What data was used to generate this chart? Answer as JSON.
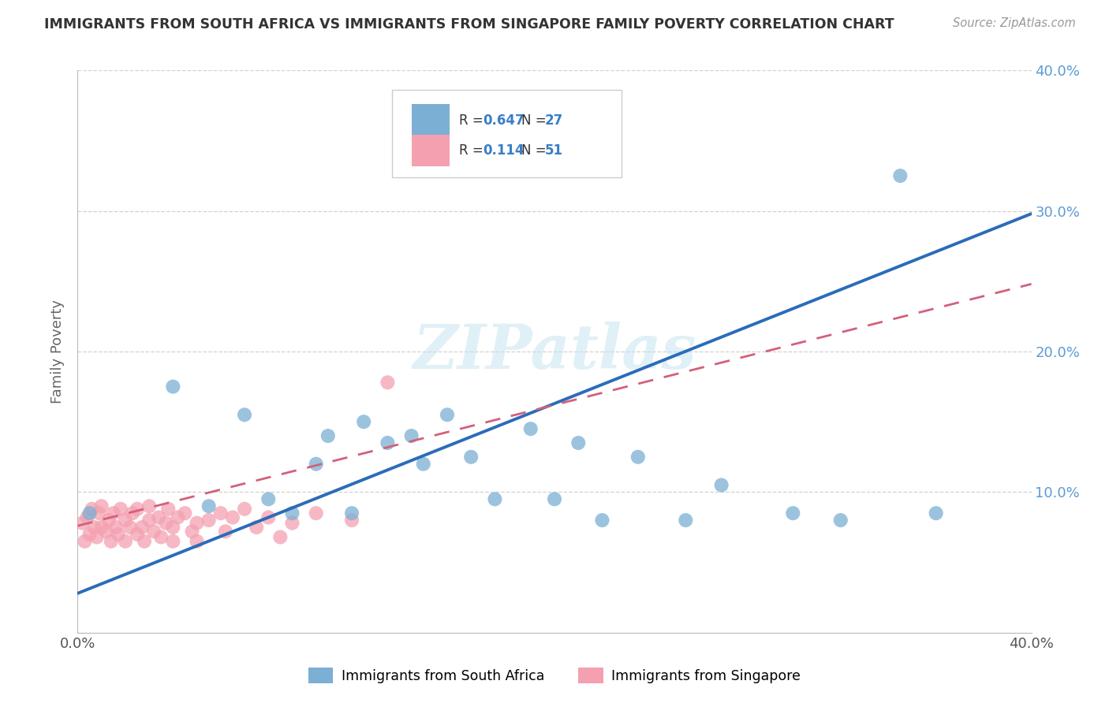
{
  "title": "IMMIGRANTS FROM SOUTH AFRICA VS IMMIGRANTS FROM SINGAPORE FAMILY POVERTY CORRELATION CHART",
  "source": "Source: ZipAtlas.com",
  "ylabel": "Family Poverty",
  "xlim": [
    0.0,
    0.4
  ],
  "ylim": [
    0.0,
    0.4
  ],
  "ytick_values": [
    0.0,
    0.1,
    0.2,
    0.3,
    0.4
  ],
  "ytick_labels": [
    "",
    "10.0%",
    "20.0%",
    "30.0%",
    "40.0%"
  ],
  "xtick_values": [
    0.0,
    0.1,
    0.2,
    0.3,
    0.4
  ],
  "xtick_labels": [
    "0.0%",
    "",
    "",
    "",
    "40.0%"
  ],
  "color_south_africa": "#7BAFD4",
  "color_singapore": "#F4A0B0",
  "legend_R_south_africa": "0.647",
  "legend_N_south_africa": "27",
  "legend_R_singapore": "0.114",
  "legend_N_singapore": "51",
  "line_color_south_africa": "#2B6CB8",
  "line_color_singapore": "#D4607A",
  "watermark": "ZIPatlas",
  "sa_line_x0": 0.0,
  "sa_line_y0": 0.028,
  "sa_line_x1": 0.4,
  "sa_line_y1": 0.298,
  "sg_line_x0": 0.0,
  "sg_line_y0": 0.076,
  "sg_line_x1": 0.4,
  "sg_line_y1": 0.248,
  "south_africa_x": [
    0.005,
    0.04,
    0.055,
    0.07,
    0.08,
    0.09,
    0.1,
    0.105,
    0.115,
    0.12,
    0.13,
    0.14,
    0.145,
    0.155,
    0.165,
    0.175,
    0.19,
    0.2,
    0.21,
    0.22,
    0.235,
    0.255,
    0.27,
    0.3,
    0.32,
    0.345,
    0.36
  ],
  "south_africa_y": [
    0.085,
    0.175,
    0.09,
    0.155,
    0.095,
    0.085,
    0.12,
    0.14,
    0.085,
    0.15,
    0.135,
    0.14,
    0.12,
    0.155,
    0.125,
    0.095,
    0.145,
    0.095,
    0.135,
    0.08,
    0.125,
    0.08,
    0.105,
    0.085,
    0.08,
    0.325,
    0.085
  ],
  "singapore_x": [
    0.002,
    0.003,
    0.004,
    0.005,
    0.006,
    0.007,
    0.008,
    0.009,
    0.01,
    0.01,
    0.012,
    0.013,
    0.014,
    0.015,
    0.016,
    0.017,
    0.018,
    0.02,
    0.02,
    0.022,
    0.023,
    0.025,
    0.025,
    0.027,
    0.028,
    0.03,
    0.03,
    0.032,
    0.034,
    0.035,
    0.037,
    0.038,
    0.04,
    0.04,
    0.042,
    0.045,
    0.048,
    0.05,
    0.05,
    0.055,
    0.06,
    0.062,
    0.065,
    0.07,
    0.075,
    0.08,
    0.085,
    0.09,
    0.1,
    0.115,
    0.13
  ],
  "singapore_y": [
    0.078,
    0.065,
    0.082,
    0.07,
    0.088,
    0.075,
    0.068,
    0.085,
    0.075,
    0.09,
    0.072,
    0.08,
    0.065,
    0.085,
    0.075,
    0.07,
    0.088,
    0.08,
    0.065,
    0.075,
    0.085,
    0.07,
    0.088,
    0.075,
    0.065,
    0.08,
    0.09,
    0.072,
    0.082,
    0.068,
    0.078,
    0.088,
    0.075,
    0.065,
    0.082,
    0.085,
    0.072,
    0.078,
    0.065,
    0.08,
    0.085,
    0.072,
    0.082,
    0.088,
    0.075,
    0.082,
    0.068,
    0.078,
    0.085,
    0.08,
    0.178
  ]
}
